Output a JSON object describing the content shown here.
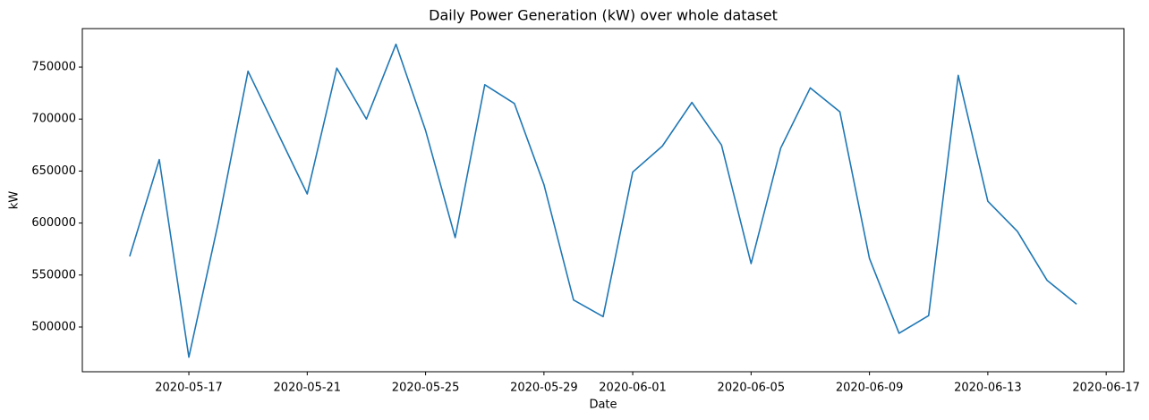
{
  "chart_data": {
    "type": "line",
    "title": "Daily Power Generation (kW) over whole dataset",
    "x_label": "Date",
    "y_label": "kW",
    "x": [
      "2020-05-15",
      "2020-05-16",
      "2020-05-17",
      "2020-05-18",
      "2020-05-19",
      "2020-05-20",
      "2020-05-21",
      "2020-05-22",
      "2020-05-23",
      "2020-05-24",
      "2020-05-25",
      "2020-05-26",
      "2020-05-27",
      "2020-05-28",
      "2020-05-29",
      "2020-05-30",
      "2020-05-31",
      "2020-06-01",
      "2020-06-02",
      "2020-06-03",
      "2020-06-04",
      "2020-06-05",
      "2020-06-06",
      "2020-06-07",
      "2020-06-08",
      "2020-06-09",
      "2020-06-10",
      "2020-06-11",
      "2020-06-12",
      "2020-06-13",
      "2020-06-14",
      "2020-06-15",
      "2020-06-16"
    ],
    "series": [
      {
        "color": "#1f77b4",
        "values": [
          568000,
          661000,
          471000,
          601000,
          746000,
          687000,
          628000,
          749000,
          700000,
          772000,
          689000,
          586000,
          733000,
          715000,
          637000,
          526000,
          510000,
          649000,
          674000,
          716000,
          675000,
          561000,
          672000,
          730000,
          707000,
          566000,
          494000,
          511000,
          742000,
          621000,
          592000,
          545000,
          522000
        ]
      }
    ],
    "xlim": [
      "2020-05-13T09:36",
      "2020-06-17T14:24"
    ],
    "xticks": [
      "2020-05-17",
      "2020-05-21",
      "2020-05-25",
      "2020-05-29",
      "2020-06-01",
      "2020-06-05",
      "2020-06-09",
      "2020-06-13",
      "2020-06-17"
    ],
    "ylim": [
      457000,
      787000
    ],
    "yticks": [
      500000,
      550000,
      600000,
      650000,
      700000,
      750000
    ],
    "grid": false
  }
}
